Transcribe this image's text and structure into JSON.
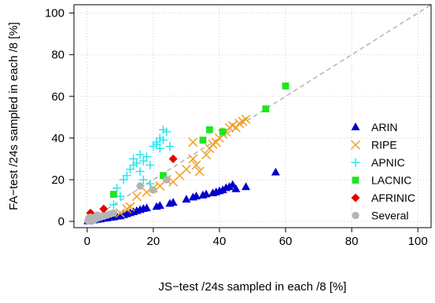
{
  "chart_data": {
    "type": "scatter",
    "title": "",
    "xlabel": "JS−test /24s sampled in each /8 [%]",
    "ylabel": "FA−test /24s sampled in each /8 [%]",
    "xlim": [
      -4,
      104
    ],
    "ylim": [
      -3,
      104
    ],
    "xticks": [
      0,
      20,
      40,
      60,
      80,
      100
    ],
    "yticks": [
      0,
      20,
      40,
      60,
      80,
      100
    ],
    "grid": true,
    "diagonal": {
      "style": "dashed",
      "color": "#b4b4b4",
      "from": [
        0,
        0
      ],
      "to": [
        104,
        104
      ]
    },
    "legend_position": "right",
    "series": [
      {
        "name": "ARIN",
        "marker": "triangle",
        "color": "#0000cc",
        "points": [
          [
            0.2,
            0.1
          ],
          [
            0.5,
            0.2
          ],
          [
            0.8,
            0.3
          ],
          [
            1,
            0.4
          ],
          [
            1.5,
            0.5
          ],
          [
            2,
            0.5
          ],
          [
            3,
            0.8
          ],
          [
            4,
            1
          ],
          [
            5,
            1.3
          ],
          [
            6,
            1.5
          ],
          [
            7,
            1.8
          ],
          [
            8,
            2
          ],
          [
            9,
            2.3
          ],
          [
            10,
            2.5
          ],
          [
            11,
            3
          ],
          [
            12,
            3.5
          ],
          [
            13,
            4
          ],
          [
            14,
            4.5
          ],
          [
            15,
            5
          ],
          [
            16,
            5.5
          ],
          [
            17,
            6
          ],
          [
            18,
            6.3
          ],
          [
            21,
            7
          ],
          [
            22,
            7.5
          ],
          [
            25,
            8.5
          ],
          [
            26,
            9
          ],
          [
            30,
            10.5
          ],
          [
            32,
            11.5
          ],
          [
            33,
            12
          ],
          [
            35,
            12.5
          ],
          [
            36,
            13
          ],
          [
            38,
            13.5
          ],
          [
            39,
            14
          ],
          [
            40,
            14.5
          ],
          [
            41,
            15
          ],
          [
            42,
            16
          ],
          [
            43,
            16.5
          ],
          [
            44,
            17.5
          ],
          [
            45,
            15.5
          ],
          [
            48,
            16.5
          ],
          [
            57,
            23.5
          ]
        ]
      },
      {
        "name": "RIPE",
        "marker": "cross",
        "color": "#f0a028",
        "points": [
          [
            10,
            4
          ],
          [
            12,
            6
          ],
          [
            13,
            7
          ],
          [
            15,
            12
          ],
          [
            18,
            14
          ],
          [
            20,
            16
          ],
          [
            22,
            17
          ],
          [
            26,
            19
          ],
          [
            28,
            22
          ],
          [
            30,
            25
          ],
          [
            32,
            30
          ],
          [
            33,
            27
          ],
          [
            34,
            24
          ],
          [
            36,
            32
          ],
          [
            37,
            35
          ],
          [
            38,
            37
          ],
          [
            39,
            38
          ],
          [
            40,
            40
          ],
          [
            41,
            42
          ],
          [
            42,
            43
          ],
          [
            43,
            45
          ],
          [
            44,
            46
          ],
          [
            45,
            45
          ],
          [
            46,
            47
          ],
          [
            47,
            48
          ],
          [
            48,
            49
          ],
          [
            32,
            38
          ],
          [
            24,
            20
          ]
        ]
      },
      {
        "name": "APNIC",
        "marker": "plus",
        "color": "#28e6f0",
        "points": [
          [
            8,
            8
          ],
          [
            9,
            16
          ],
          [
            10,
            12
          ],
          [
            11,
            20
          ],
          [
            12,
            22
          ],
          [
            13,
            25
          ],
          [
            14,
            27
          ],
          [
            14,
            30
          ],
          [
            15,
            28
          ],
          [
            16,
            32
          ],
          [
            16,
            24
          ],
          [
            17,
            20
          ],
          [
            17,
            29
          ],
          [
            18,
            31
          ],
          [
            19,
            27
          ],
          [
            20,
            36
          ],
          [
            21,
            37
          ],
          [
            21,
            38
          ],
          [
            22,
            40
          ],
          [
            22,
            35
          ],
          [
            23,
            39
          ],
          [
            23,
            44
          ],
          [
            24,
            43
          ],
          [
            25,
            36
          ],
          [
            19,
            18
          ]
        ]
      },
      {
        "name": "LACNIC",
        "marker": "square",
        "color": "#1ee61e",
        "points": [
          [
            8,
            13
          ],
          [
            23,
            22
          ],
          [
            35,
            39
          ],
          [
            37,
            44
          ],
          [
            41,
            43
          ],
          [
            54,
            54
          ],
          [
            60,
            65
          ]
        ]
      },
      {
        "name": "AFRINIC",
        "marker": "diamond",
        "color": "#e60000",
        "points": [
          [
            1,
            4
          ],
          [
            5,
            6
          ],
          [
            26,
            30
          ]
        ]
      },
      {
        "name": "Several",
        "marker": "circle",
        "color": "#b4b4b4",
        "points": [
          [
            0.3,
            0.3
          ],
          [
            1,
            0.5
          ],
          [
            2,
            1
          ],
          [
            3,
            1.5
          ],
          [
            4,
            2
          ],
          [
            5,
            2.5
          ],
          [
            6,
            3
          ],
          [
            7,
            3.5
          ],
          [
            8,
            4
          ],
          [
            16,
            17
          ],
          [
            20,
            15
          ],
          [
            24,
            20
          ],
          [
            3,
            3
          ],
          [
            1,
            2
          ],
          [
            2,
            0.5
          ],
          [
            0.5,
            1.5
          ]
        ]
      }
    ]
  },
  "colors": {
    "grid": "#cccccc",
    "axis": "#000000",
    "diagonal": "#b4b4b4"
  }
}
